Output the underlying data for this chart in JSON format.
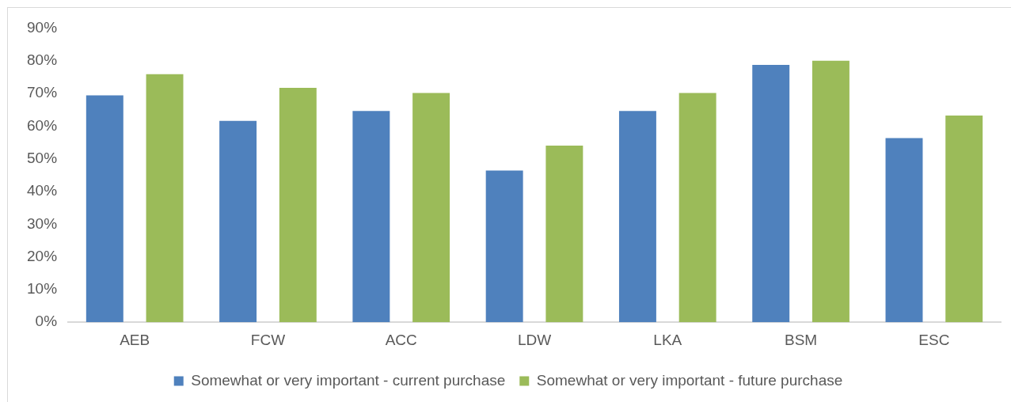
{
  "chart_data": {
    "type": "bar",
    "categories": [
      "AEB",
      "FCW",
      "ACC",
      "LDW",
      "LKA",
      "BSM",
      "ESC"
    ],
    "series": [
      {
        "name": "Somewhat or very important - current purchase",
        "color": "#4f81bd",
        "values": [
          69.4,
          61.6,
          64.6,
          46.4,
          64.6,
          78.7,
          56.3
        ]
      },
      {
        "name": "Somewhat or very important - future purchase",
        "color": "#9bbb59",
        "values": [
          75.9,
          71.7,
          70.1,
          54,
          70.1,
          80,
          63.2
        ]
      }
    ],
    "ylim": [
      0,
      90
    ],
    "yticks": [
      {
        "value": 0,
        "label": "0%"
      },
      {
        "value": 10,
        "label": "10%"
      },
      {
        "value": 20,
        "label": "20%"
      },
      {
        "value": 30,
        "label": "30%"
      },
      {
        "value": 40,
        "label": "40%"
      },
      {
        "value": 50,
        "label": "50%"
      },
      {
        "value": 60,
        "label": "60%"
      },
      {
        "value": 70,
        "label": "70%"
      },
      {
        "value": 80,
        "label": "80%"
      },
      {
        "value": 90,
        "label": "90%"
      }
    ],
    "grid": false,
    "legend": "bottom"
  }
}
